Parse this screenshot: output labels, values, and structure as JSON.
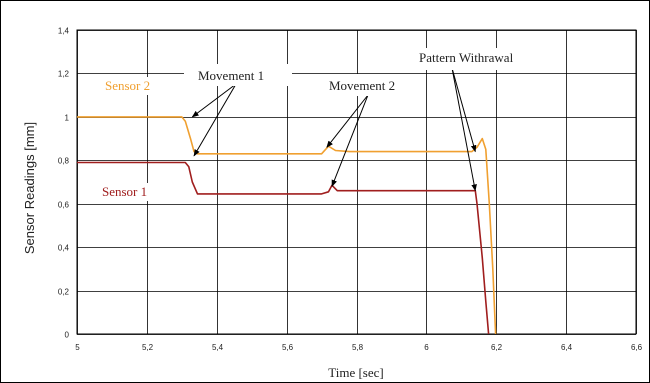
{
  "chart_data": {
    "type": "line",
    "title": "",
    "xlabel": "Time [sec]",
    "ylabel": "Sensor Readings [mm]",
    "xlim": [
      5,
      6.6
    ],
    "ylim": [
      0,
      1.4
    ],
    "x_ticks": [
      5,
      5.2,
      5.4,
      5.6,
      5.8,
      6,
      6.2,
      6.4,
      6.6
    ],
    "x_tick_labels": [
      "5",
      "5,2",
      "5,4",
      "5,6",
      "5,8",
      "6",
      "6,2",
      "6,4",
      "6,6"
    ],
    "y_ticks": [
      0,
      0.2,
      0.4,
      0.6,
      0.8,
      1,
      1.2,
      1.4
    ],
    "y_tick_labels": [
      "0",
      "0,2",
      "0,4",
      "0,6",
      "0,8",
      "1",
      "1,2",
      "1,4"
    ],
    "grid": true,
    "series": [
      {
        "name": "Sensor 2",
        "color": "#f0a030",
        "points": [
          [
            5,
            1.0
          ],
          [
            5.3,
            1.0
          ],
          [
            5.31,
            0.98
          ],
          [
            5.325,
            0.9
          ],
          [
            5.335,
            0.84
          ],
          [
            5.345,
            0.83
          ],
          [
            5.7,
            0.83
          ],
          [
            5.72,
            0.865
          ],
          [
            5.74,
            0.845
          ],
          [
            5.78,
            0.84
          ],
          [
            6.13,
            0.84
          ],
          [
            6.145,
            0.86
          ],
          [
            6.16,
            0.9
          ],
          [
            6.17,
            0.85
          ],
          [
            6.18,
            0.6
          ],
          [
            6.19,
            0.3
          ],
          [
            6.198,
            0
          ]
        ]
      },
      {
        "name": "Sensor 1",
        "color": "#a01e1e",
        "points": [
          [
            5,
            0.79
          ],
          [
            5.31,
            0.79
          ],
          [
            5.32,
            0.77
          ],
          [
            5.33,
            0.7
          ],
          [
            5.345,
            0.645
          ],
          [
            5.7,
            0.645
          ],
          [
            5.72,
            0.655
          ],
          [
            5.73,
            0.685
          ],
          [
            5.745,
            0.66
          ],
          [
            5.78,
            0.66
          ],
          [
            6.14,
            0.66
          ],
          [
            6.145,
            0.6
          ],
          [
            6.16,
            0.35
          ],
          [
            6.17,
            0.15
          ],
          [
            6.178,
            0
          ]
        ]
      }
    ],
    "annotations": [
      {
        "text": "Movement 1",
        "pointing_to": [
          [
            5.33,
            1.0
          ],
          [
            5.335,
            0.82
          ]
        ]
      },
      {
        "text": "Movement 2",
        "pointing_to": [
          [
            5.715,
            0.86
          ],
          [
            5.73,
            0.68
          ]
        ]
      },
      {
        "text": "Pattern Withrawal",
        "pointing_to": [
          [
            6.14,
            0.84
          ],
          [
            6.14,
            0.66
          ]
        ]
      }
    ]
  }
}
